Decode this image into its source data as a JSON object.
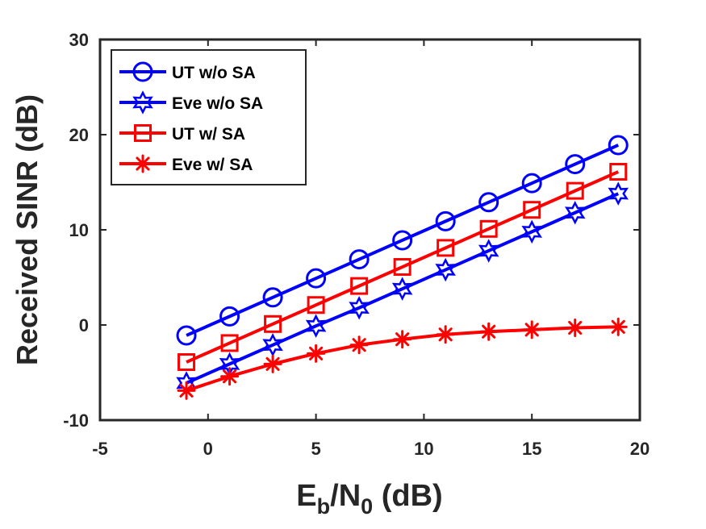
{
  "chart_data": {
    "type": "line",
    "xlabel": {
      "main": "E",
      "sub1": "b",
      "mid": "/N",
      "sub2": "0",
      "tail": " (dB)"
    },
    "ylabel": "Received SINR (dB)",
    "xlim": [
      -5,
      20
    ],
    "ylim": [
      -10,
      30
    ],
    "xticks": [
      -5,
      0,
      5,
      10,
      15,
      20
    ],
    "yticks": [
      -10,
      0,
      10,
      20,
      30
    ],
    "xtick_labels": [
      "-5",
      "0",
      "5",
      "10",
      "15",
      "20"
    ],
    "ytick_labels": [
      "-10",
      "0",
      "10",
      "20",
      "30"
    ],
    "grid": false,
    "legend_position": "top-left",
    "x": [
      -1,
      1,
      3,
      5,
      7,
      9,
      11,
      13,
      15,
      17,
      19
    ],
    "series": [
      {
        "name": "UT w/o SA",
        "color": "#0000ff",
        "marker": "circle",
        "values": [
          -1.1,
          0.9,
          2.9,
          4.9,
          6.9,
          8.9,
          10.9,
          12.9,
          14.9,
          16.9,
          18.9
        ]
      },
      {
        "name": "Eve w/o SA",
        "color": "#0000ff",
        "marker": "hexagram",
        "values": [
          -6.1,
          -4.1,
          -2.1,
          -0.1,
          1.8,
          3.8,
          5.8,
          7.8,
          9.8,
          11.8,
          13.8
        ]
      },
      {
        "name": "UT w/ SA",
        "color": "#ff0000",
        "marker": "square",
        "values": [
          -3.9,
          -1.9,
          0.1,
          2.1,
          4.1,
          6.1,
          8.1,
          10.1,
          12.1,
          14.1,
          16.1
        ]
      },
      {
        "name": "Eve w/ SA",
        "color": "#ff0000",
        "marker": "asterisk",
        "values": [
          -6.9,
          -5.4,
          -4.1,
          -3.0,
          -2.1,
          -1.5,
          -1.0,
          -0.7,
          -0.5,
          -0.3,
          -0.2
        ]
      }
    ]
  }
}
